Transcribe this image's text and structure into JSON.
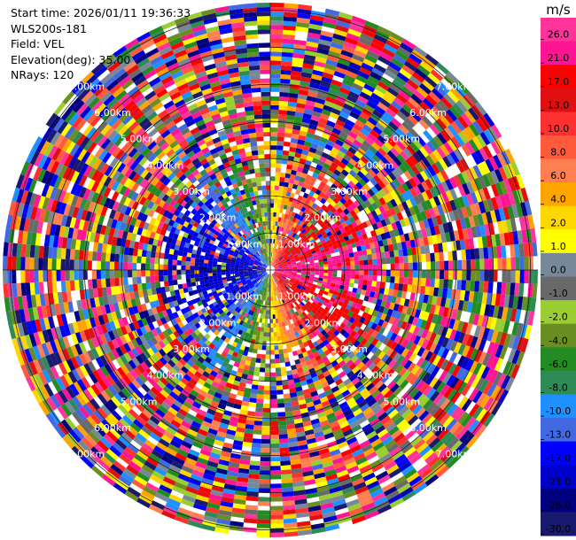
{
  "header": {
    "start_time": "Start time: 2026/01/11 19:36:33",
    "instrument": "WLS200s-181",
    "field": "Field: VEL",
    "elevation": "Elevation(deg): 35.00",
    "nrays": "NRays: 120"
  },
  "chart_data": {
    "type": "heatmap",
    "projection": "polar-ppi",
    "field": "VEL",
    "units": "m/s",
    "elevation_deg": 35.0,
    "n_rays": 120,
    "range_rings_km": [
      1.0,
      2.0,
      3.0,
      4.0,
      5.0,
      6.0,
      7.0
    ],
    "max_range_km": 7.2,
    "range_ring_labels": [
      "1.00km",
      "2.00km",
      "3.00km",
      "4.00km",
      "5.00km",
      "6.00km",
      "7.00km"
    ],
    "colorbar": {
      "label": "m/s",
      "ticks": [
        "26.0",
        "21.0",
        "17.0",
        "13.0",
        "10.0",
        "8.0",
        "6.0",
        "4.0",
        "2.0",
        "1.0",
        "0.0",
        "-1.0",
        "-2.0",
        "-4.0",
        "-6.0",
        "-8.0",
        "-10.0",
        "-13.0",
        "-17.0",
        "-21.0",
        "-26.0",
        "-30.0"
      ],
      "colors": [
        "#ff3399",
        "#ff1493",
        "#ff0000",
        "#e01010",
        "#ff3030",
        "#ff5a3c",
        "#ff7f50",
        "#ffa500",
        "#ffd700",
        "#ffff00",
        "#778899",
        "#696969",
        "#9acd32",
        "#6b8e23",
        "#228b22",
        "#2e8b57",
        "#1e90ff",
        "#4169e1",
        "#0000ff",
        "#0000cd",
        "#000080",
        "#191970"
      ]
    },
    "pattern": {
      "near_field_max_km": 3.0,
      "approach_direction_deg": 270,
      "recede_direction_deg": 90,
      "far_field": "noise"
    }
  }
}
